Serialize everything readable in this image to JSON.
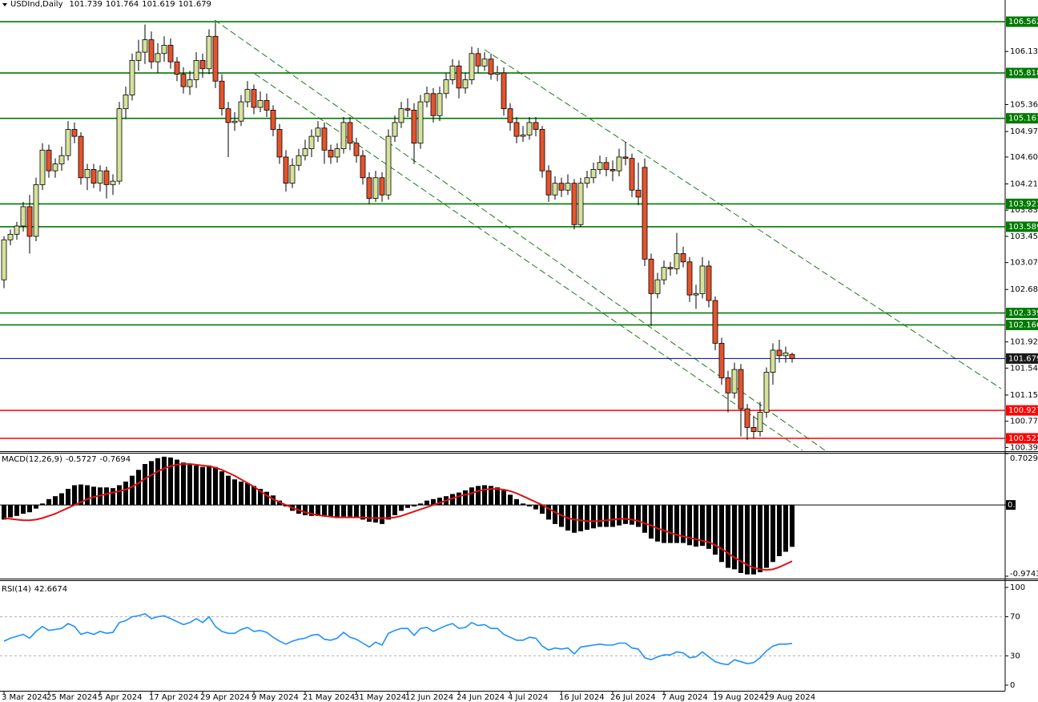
{
  "chart_data": {
    "type": "candlestick",
    "title": "USDInd,Daily",
    "header_values": [
      101.739,
      101.764,
      101.619,
      101.679
    ],
    "up_color": "#d6e29a",
    "down_color": "#e5532d",
    "xlim": [
      -0.625,
      156.25
    ],
    "xticks": [
      {
        "value": 0,
        "label": "3 Mar 2024"
      },
      {
        "value": 7,
        "label": "25 Mar 2024"
      },
      {
        "value": 15,
        "label": "5 Apr 2024"
      },
      {
        "value": 23,
        "label": "17 Apr 2024"
      },
      {
        "value": 31,
        "label": "29 Apr 2024"
      },
      {
        "value": 39,
        "label": "9 May 2024"
      },
      {
        "value": 47,
        "label": "21 May 2024"
      },
      {
        "value": 55,
        "label": "31 May 2024"
      },
      {
        "value": 63,
        "label": "12 Jun 2024"
      },
      {
        "value": 71,
        "label": "24 Jun 2024"
      },
      {
        "value": 79,
        "label": "4 Jul 2024"
      },
      {
        "value": 87,
        "label": "16 Jul 2024"
      },
      {
        "value": 95,
        "label": "26 Jul 2024"
      },
      {
        "value": 103,
        "label": "7 Aug 2024"
      },
      {
        "value": 111,
        "label": "19 Aug 2024"
      },
      {
        "value": 119,
        "label": "29 Aug 2024"
      }
    ],
    "ylim": [
      100.336,
      106.76
    ],
    "yticks": [
      {
        "value": 106.13,
        "label": "106.130"
      },
      {
        "value": 105.36,
        "label": "105.360"
      },
      {
        "value": 104.97,
        "label": "104.970"
      },
      {
        "value": 104.6,
        "label": "104.600"
      },
      {
        "value": 104.21,
        "label": "104.210"
      },
      {
        "value": 103.83,
        "label": "103.830"
      },
      {
        "value": 103.45,
        "label": "103.450"
      },
      {
        "value": 103.07,
        "label": "103.070"
      },
      {
        "value": 102.68,
        "label": "102.680"
      },
      {
        "value": 101.92,
        "label": "101.920"
      },
      {
        "value": 101.54,
        "label": "101.540"
      },
      {
        "value": 101.15,
        "label": "101.150"
      },
      {
        "value": 100.77,
        "label": "100.770"
      },
      {
        "value": 100.39,
        "label": "100.390"
      }
    ],
    "levels": [
      {
        "value": 106.562,
        "color": "#007a00"
      },
      {
        "value": 105.818,
        "color": "#007a00"
      },
      {
        "value": 105.161,
        "color": "#007a00"
      },
      {
        "value": 103.921,
        "color": "#007a00"
      },
      {
        "value": 103.589,
        "color": "#007a00"
      },
      {
        "value": 102.339,
        "color": "#007a00"
      },
      {
        "value": 102.166,
        "color": "#007a00"
      },
      {
        "value": 101.679,
        "color": "#000080"
      },
      {
        "value": 100.927,
        "color": "#ff0000"
      },
      {
        "value": 100.522,
        "color": "#ff0000"
      }
    ],
    "candles": [
      [
        102.82,
        103.45,
        102.7,
        103.4
      ],
      [
        103.4,
        103.55,
        103.32,
        103.48
      ],
      [
        103.48,
        103.66,
        103.4,
        103.6
      ],
      [
        103.6,
        103.95,
        103.52,
        103.88
      ],
      [
        103.88,
        104.05,
        103.2,
        103.45
      ],
      [
        103.45,
        104.3,
        103.38,
        104.2
      ],
      [
        104.2,
        104.8,
        104.12,
        104.7
      ],
      [
        104.7,
        104.78,
        104.3,
        104.4
      ],
      [
        104.4,
        104.58,
        104.3,
        104.5
      ],
      [
        104.5,
        104.75,
        104.4,
        104.62
      ],
      [
        104.62,
        105.12,
        104.55,
        105.0
      ],
      [
        105.0,
        105.1,
        104.8,
        104.9
      ],
      [
        104.9,
        104.96,
        104.2,
        104.3
      ],
      [
        104.3,
        104.5,
        104.12,
        104.42
      ],
      [
        104.42,
        104.5,
        104.15,
        104.22
      ],
      [
        104.22,
        104.48,
        104.1,
        104.4
      ],
      [
        104.4,
        104.46,
        104.0,
        104.2
      ],
      [
        104.2,
        104.35,
        104.05,
        104.25
      ],
      [
        104.25,
        105.4,
        104.2,
        105.3
      ],
      [
        105.3,
        105.62,
        105.15,
        105.5
      ],
      [
        105.5,
        106.1,
        105.42,
        106.0
      ],
      [
        106.0,
        106.3,
        105.85,
        106.12
      ],
      [
        106.12,
        106.52,
        105.95,
        106.3
      ],
      [
        106.3,
        106.42,
        105.88,
        105.98
      ],
      [
        105.98,
        106.25,
        105.82,
        106.1
      ],
      [
        106.1,
        106.35,
        105.98,
        106.22
      ],
      [
        106.22,
        106.32,
        105.88,
        105.98
      ],
      [
        105.98,
        106.05,
        105.7,
        105.8
      ],
      [
        105.8,
        105.9,
        105.52,
        105.62
      ],
      [
        105.62,
        105.85,
        105.5,
        105.72
      ],
      [
        105.72,
        106.12,
        105.6,
        106.0
      ],
      [
        106.0,
        106.1,
        105.75,
        105.88
      ],
      [
        105.88,
        106.45,
        105.8,
        106.35
      ],
      [
        106.35,
        106.55,
        105.6,
        105.7
      ],
      [
        105.7,
        105.8,
        105.2,
        105.3
      ],
      [
        105.3,
        105.4,
        104.6,
        105.1
      ],
      [
        105.1,
        105.25,
        104.98,
        105.12
      ],
      [
        105.12,
        105.5,
        105.05,
        105.4
      ],
      [
        105.4,
        105.7,
        105.32,
        105.58
      ],
      [
        105.58,
        105.65,
        105.22,
        105.32
      ],
      [
        105.32,
        105.55,
        105.25,
        105.42
      ],
      [
        105.42,
        105.52,
        105.18,
        105.28
      ],
      [
        105.28,
        105.35,
        104.9,
        105.0
      ],
      [
        105.0,
        105.08,
        104.5,
        104.6
      ],
      [
        104.6,
        104.7,
        104.1,
        104.22
      ],
      [
        104.22,
        104.58,
        104.15,
        104.48
      ],
      [
        104.48,
        104.72,
        104.4,
        104.62
      ],
      [
        104.62,
        104.85,
        104.55,
        104.72
      ],
      [
        104.72,
        105.0,
        104.6,
        104.9
      ],
      [
        104.9,
        105.12,
        104.82,
        105.02
      ],
      [
        105.02,
        105.1,
        104.5,
        104.7
      ],
      [
        104.7,
        104.78,
        104.5,
        104.6
      ],
      [
        104.6,
        104.8,
        104.52,
        104.72
      ],
      [
        104.72,
        105.18,
        104.65,
        105.1
      ],
      [
        105.1,
        105.18,
        104.7,
        104.8
      ],
      [
        104.8,
        104.88,
        104.52,
        104.62
      ],
      [
        104.62,
        104.7,
        104.2,
        104.3
      ],
      [
        104.3,
        104.38,
        103.92,
        104.0
      ],
      [
        104.0,
        104.4,
        103.95,
        104.3
      ],
      [
        104.3,
        104.38,
        103.95,
        104.05
      ],
      [
        104.05,
        105.0,
        103.98,
        104.9
      ],
      [
        104.9,
        105.2,
        104.82,
        105.1
      ],
      [
        105.1,
        105.4,
        105.02,
        105.3
      ],
      [
        105.3,
        105.45,
        105.18,
        105.28
      ],
      [
        105.28,
        105.38,
        104.5,
        104.8
      ],
      [
        104.8,
        105.5,
        104.72,
        105.4
      ],
      [
        105.4,
        105.62,
        105.32,
        105.52
      ],
      [
        105.52,
        105.6,
        105.1,
        105.2
      ],
      [
        105.2,
        105.62,
        105.12,
        105.52
      ],
      [
        105.52,
        105.82,
        105.45,
        105.72
      ],
      [
        105.72,
        106.02,
        105.65,
        105.92
      ],
      [
        105.92,
        106.0,
        105.45,
        105.6
      ],
      [
        105.6,
        105.82,
        105.52,
        105.72
      ],
      [
        105.72,
        106.2,
        105.65,
        106.1
      ],
      [
        106.1,
        106.18,
        105.82,
        105.92
      ],
      [
        105.92,
        106.12,
        105.85,
        106.02
      ],
      [
        106.02,
        106.1,
        105.72,
        105.8
      ],
      [
        105.8,
        105.92,
        105.7,
        105.82
      ],
      [
        105.82,
        105.9,
        105.2,
        105.3
      ],
      [
        105.3,
        105.38,
        104.98,
        105.1
      ],
      [
        105.1,
        105.18,
        104.8,
        104.9
      ],
      [
        104.9,
        105.05,
        104.82,
        104.92
      ],
      [
        104.92,
        105.18,
        104.85,
        105.1
      ],
      [
        105.1,
        105.18,
        104.9,
        105.0
      ],
      [
        105.0,
        105.05,
        104.3,
        104.4
      ],
      [
        104.4,
        104.48,
        103.95,
        104.05
      ],
      [
        104.05,
        104.32,
        103.98,
        104.22
      ],
      [
        104.22,
        104.3,
        104.02,
        104.12
      ],
      [
        104.12,
        104.35,
        104.05,
        104.22
      ],
      [
        104.22,
        104.28,
        103.55,
        103.62
      ],
      [
        103.62,
        104.3,
        103.58,
        104.22
      ],
      [
        104.22,
        104.4,
        104.15,
        104.3
      ],
      [
        104.3,
        104.52,
        104.22,
        104.42
      ],
      [
        104.42,
        104.62,
        104.35,
        104.52
      ],
      [
        104.52,
        104.6,
        104.32,
        104.42
      ],
      [
        104.42,
        104.55,
        104.25,
        104.4
      ],
      [
        104.4,
        104.72,
        104.32,
        104.6
      ],
      [
        104.6,
        104.82,
        104.48,
        104.58
      ],
      [
        104.58,
        104.65,
        104.02,
        104.12
      ],
      [
        104.12,
        104.52,
        103.9,
        104.02
      ],
      [
        104.45,
        104.58,
        103.02,
        103.12
      ],
      [
        103.12,
        103.2,
        102.15,
        102.62
      ],
      [
        102.62,
        102.92,
        102.55,
        102.82
      ],
      [
        102.82,
        103.1,
        102.75,
        103.0
      ],
      [
        103.0,
        103.08,
        102.88,
        102.98
      ],
      [
        102.98,
        103.5,
        102.9,
        103.2
      ],
      [
        103.2,
        103.3,
        103.0,
        103.08
      ],
      [
        103.08,
        103.15,
        102.5,
        102.6
      ],
      [
        102.6,
        102.75,
        102.4,
        102.62
      ],
      [
        102.62,
        103.15,
        102.55,
        103.02
      ],
      [
        103.02,
        103.1,
        102.42,
        102.52
      ],
      [
        102.52,
        102.58,
        101.8,
        101.9
      ],
      [
        101.9,
        101.98,
        101.3,
        101.4
      ],
      [
        101.4,
        101.5,
        100.9,
        101.18
      ],
      [
        101.18,
        101.62,
        101.1,
        101.52
      ],
      [
        101.52,
        101.6,
        100.55,
        100.95
      ],
      [
        100.95,
        101.02,
        100.5,
        100.68
      ],
      [
        100.68,
        100.85,
        100.52,
        100.62
      ],
      [
        100.62,
        101.05,
        100.55,
        100.9
      ],
      [
        100.9,
        101.55,
        100.82,
        101.48
      ],
      [
        101.48,
        101.9,
        101.3,
        101.8
      ],
      [
        101.8,
        101.95,
        101.62,
        101.72
      ],
      [
        101.72,
        101.85,
        101.62,
        101.76
      ],
      [
        101.739,
        101.764,
        101.619,
        101.679
      ]
    ],
    "macd": {
      "title": "MACD(12,26,9)",
      "header_values": [
        -0.5727,
        -0.7694
      ],
      "ylim": [
        -0.9743,
        0.7029
      ],
      "yticks": [
        0.7029,
        {
          "value": 0,
          "label": "0.00"
        },
        -0.9743
      ],
      "hist_color": "#000000",
      "signal_color": "#e01010",
      "hist": [
        -0.2,
        -0.17,
        -0.15,
        -0.12,
        -0.1,
        -0.05,
        0.02,
        0.08,
        0.12,
        0.16,
        0.22,
        0.27,
        0.28,
        0.27,
        0.25,
        0.24,
        0.24,
        0.23,
        0.27,
        0.32,
        0.4,
        0.48,
        0.56,
        0.6,
        0.64,
        0.66,
        0.65,
        0.62,
        0.58,
        0.55,
        0.54,
        0.52,
        0.54,
        0.52,
        0.46,
        0.4,
        0.35,
        0.32,
        0.3,
        0.26,
        0.22,
        0.18,
        0.13,
        0.06,
        -0.02,
        -0.08,
        -0.12,
        -0.14,
        -0.15,
        -0.15,
        -0.16,
        -0.16,
        -0.18,
        -0.16,
        -0.16,
        -0.17,
        -0.2,
        -0.23,
        -0.24,
        -0.26,
        -0.2,
        -0.14,
        -0.08,
        -0.04,
        -0.02,
        0.02,
        0.06,
        0.08,
        0.1,
        0.12,
        0.15,
        0.17,
        0.2,
        0.24,
        0.26,
        0.27,
        0.26,
        0.24,
        0.2,
        0.14,
        0.08,
        0.02,
        -0.02,
        -0.06,
        -0.12,
        -0.2,
        -0.26,
        -0.3,
        -0.35,
        -0.38,
        -0.36,
        -0.34,
        -0.32,
        -0.3,
        -0.3,
        -0.3,
        -0.28,
        -0.26,
        -0.27,
        -0.3,
        -0.38,
        -0.46,
        -0.5,
        -0.52,
        -0.52,
        -0.52,
        -0.52,
        -0.55,
        -0.57,
        -0.56,
        -0.6,
        -0.68,
        -0.78,
        -0.86,
        -0.88,
        -0.93,
        -0.95,
        -0.95,
        -0.92,
        -0.86,
        -0.78,
        -0.7,
        -0.64,
        -0.5727
      ],
      "signal": [
        -0.18,
        -0.19,
        -0.2,
        -0.21,
        -0.21,
        -0.2,
        -0.18,
        -0.15,
        -0.12,
        -0.08,
        -0.04,
        0.0,
        0.04,
        0.08,
        0.11,
        0.13,
        0.15,
        0.17,
        0.19,
        0.21,
        0.25,
        0.3,
        0.36,
        0.41,
        0.46,
        0.5,
        0.53,
        0.55,
        0.56,
        0.56,
        0.55,
        0.54,
        0.53,
        0.51,
        0.48,
        0.44,
        0.4,
        0.35,
        0.3,
        0.25,
        0.19,
        0.13,
        0.08,
        0.04,
        0.0,
        -0.04,
        -0.07,
        -0.1,
        -0.12,
        -0.14,
        -0.15,
        -0.16,
        -0.17,
        -0.17,
        -0.17,
        -0.17,
        -0.17,
        -0.18,
        -0.18,
        -0.18,
        -0.18,
        -0.17,
        -0.15,
        -0.12,
        -0.09,
        -0.06,
        -0.03,
        0.0,
        0.03,
        0.06,
        0.09,
        0.12,
        0.14,
        0.16,
        0.19,
        0.21,
        0.22,
        0.22,
        0.21,
        0.19,
        0.16,
        0.12,
        0.08,
        0.04,
        0.0,
        -0.05,
        -0.1,
        -0.14,
        -0.18,
        -0.2,
        -0.21,
        -0.22,
        -0.22,
        -0.22,
        -0.21,
        -0.2,
        -0.19,
        -0.19,
        -0.2,
        -0.22,
        -0.25,
        -0.28,
        -0.32,
        -0.35,
        -0.38,
        -0.41,
        -0.43,
        -0.45,
        -0.47,
        -0.49,
        -0.51,
        -0.55,
        -0.6,
        -0.66,
        -0.72,
        -0.77,
        -0.82,
        -0.86,
        -0.88,
        -0.89,
        -0.88,
        -0.85,
        -0.81,
        -0.7694
      ]
    },
    "rsi": {
      "title": "RSI(14)",
      "header_value": 42.6674,
      "ylim": [
        0,
        100
      ],
      "yticks": [
        100,
        70,
        30,
        0
      ],
      "levels": [
        70,
        30
      ],
      "color": "#1e90ff",
      "values": [
        45,
        48,
        50,
        52,
        48,
        55,
        60,
        56,
        57,
        58,
        63,
        60,
        52,
        54,
        52,
        55,
        53,
        54,
        64,
        66,
        70,
        71,
        73,
        68,
        70,
        71,
        68,
        65,
        62,
        64,
        68,
        64,
        70,
        60,
        55,
        53,
        53,
        57,
        59,
        55,
        56,
        54,
        49,
        45,
        42,
        45,
        47,
        48,
        51,
        52,
        47,
        46,
        48,
        54,
        49,
        47,
        43,
        39,
        44,
        41,
        53,
        56,
        58,
        58,
        51,
        58,
        59,
        55,
        58,
        61,
        63,
        58,
        59,
        64,
        61,
        62,
        58,
        58,
        52,
        49,
        46,
        46,
        49,
        48,
        40,
        36,
        38,
        37,
        38,
        32,
        39,
        40,
        41,
        42,
        41,
        41,
        43,
        43,
        38,
        37,
        28,
        26,
        29,
        31,
        31,
        34,
        33,
        28,
        29,
        34,
        29,
        24,
        22,
        21,
        26,
        24,
        22,
        23,
        28,
        35,
        40,
        42,
        42,
        42.6674
      ]
    }
  }
}
